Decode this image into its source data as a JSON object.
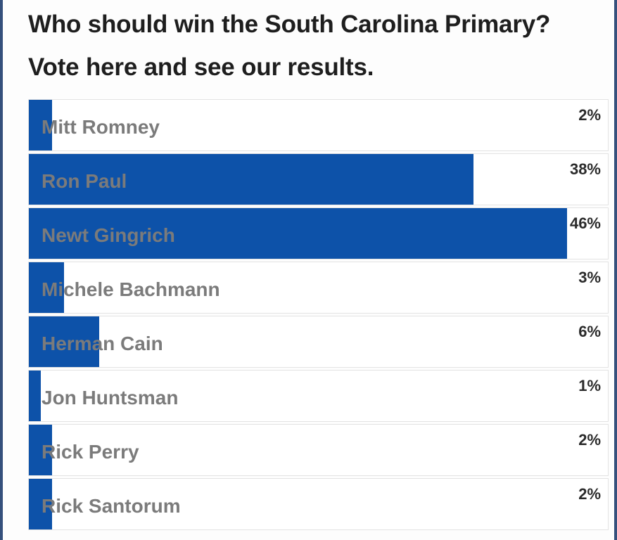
{
  "poll": {
    "title": "Who should win the South Carolina Primary? Vote here and see our results."
  },
  "colors": {
    "bar": "#0d52a9",
    "frame": "#35507c",
    "label": "#7b7b7b"
  },
  "chart_data": {
    "type": "bar",
    "orientation": "horizontal",
    "title": "Who should win the South Carolina Primary? Vote here and see our results.",
    "categories": [
      "Mitt Romney",
      "Ron Paul",
      "Newt Gingrich",
      "Michele Bachmann",
      "Herman Cain",
      "Jon Huntsman",
      "Rick Perry",
      "Rick Santorum"
    ],
    "values": [
      2,
      38,
      46,
      3,
      6,
      1,
      2,
      2
    ],
    "value_labels": [
      "2%",
      "38%",
      "46%",
      "3%",
      "6%",
      "1%",
      "2%",
      "2%"
    ],
    "xlim": [
      0,
      100
    ],
    "grid": false
  }
}
